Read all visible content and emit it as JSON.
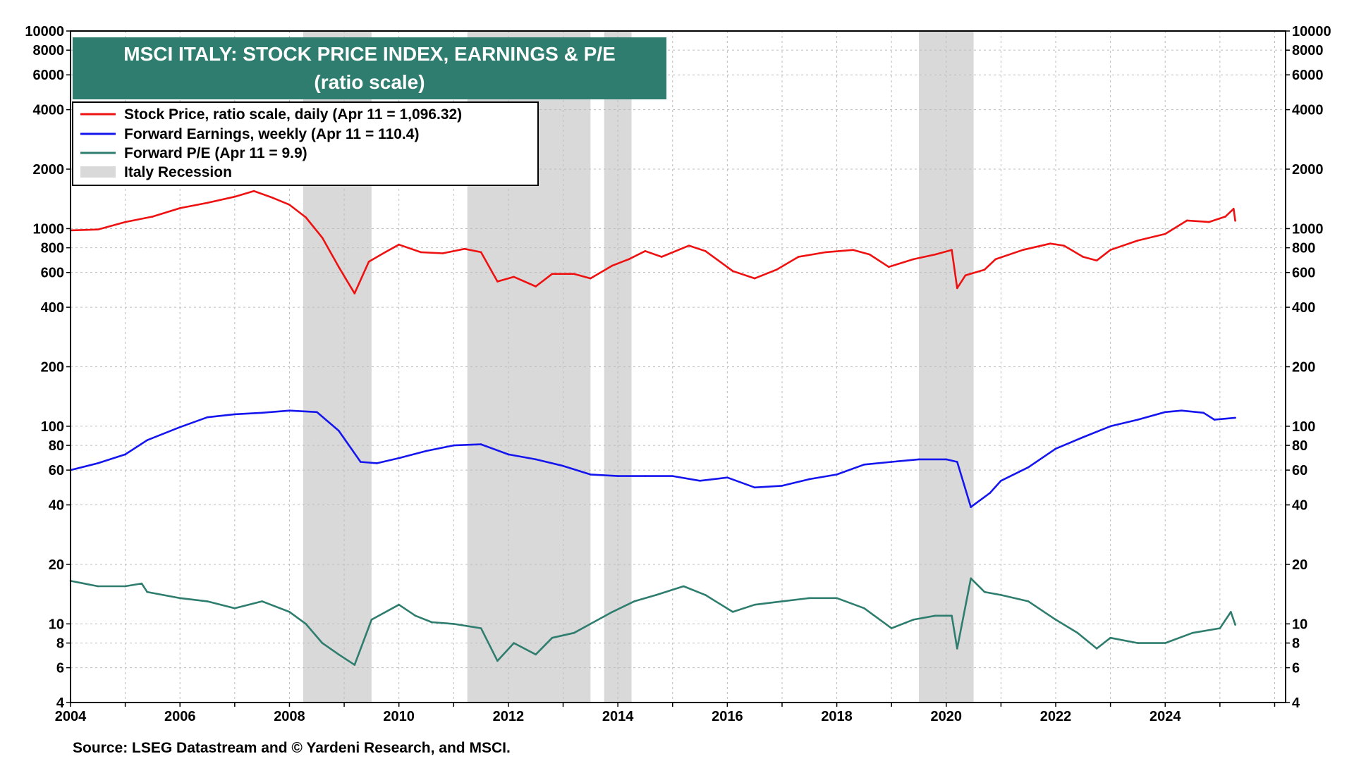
{
  "chart_data": {
    "type": "line",
    "title": "MSCI ITALY: STOCK PRICE INDEX, EARNINGS & P/E",
    "subtitle": "(ratio scale)",
    "source": "Source: LSEG Datastream and © Yardeni Research, and MSCI.",
    "y_scale": "log",
    "ylim": [
      4,
      10000
    ],
    "xlim": [
      2004.0,
      2026.2
    ],
    "x_ticks": [
      "2004",
      "2006",
      "2008",
      "2010",
      "2012",
      "2014",
      "2016",
      "2018",
      "2020",
      "2022",
      "2024"
    ],
    "y_ticks": [
      "4",
      "6",
      "8",
      "10",
      "20",
      "40",
      "60",
      "80",
      "100",
      "200",
      "400",
      "600",
      "800",
      "1000",
      "2000",
      "4000",
      "6000",
      "8000",
      "10000"
    ],
    "grid": true,
    "legend_position": "top-left",
    "legend": [
      {
        "label": "Stock Price, ratio scale, daily (Apr 11 = 1,096.32)",
        "color": "#ee1111",
        "kind": "line"
      },
      {
        "label": "Forward Earnings, weekly (Apr 11 = 110.4)",
        "color": "#1515ee",
        "kind": "line"
      },
      {
        "label": "Forward P/E (Apr 11 = 9.9)",
        "color": "#2e7d6e",
        "kind": "line"
      },
      {
        "label": "Italy Recession",
        "color": "#d9d9d9",
        "kind": "area"
      }
    ],
    "recessions": [
      [
        2008.25,
        2009.5
      ],
      [
        2011.25,
        2013.5
      ],
      [
        2013.75,
        2014.25
      ],
      [
        2019.5,
        2020.5
      ]
    ],
    "series": [
      {
        "name": "Stock Price, ratio scale, daily (Apr 11 = 1,096.32)",
        "color": "#ee1111",
        "x": [
          2004.0,
          2004.5,
          2005.0,
          2005.5,
          2006.0,
          2006.5,
          2007.0,
          2007.35,
          2007.7,
          2008.0,
          2008.3,
          2008.6,
          2008.9,
          2009.19,
          2009.45,
          2009.75,
          2010.0,
          2010.4,
          2010.8,
          2011.2,
          2011.5,
          2011.8,
          2012.1,
          2012.5,
          2012.8,
          2013.2,
          2013.5,
          2013.9,
          2014.2,
          2014.5,
          2014.8,
          2015.3,
          2015.6,
          2016.1,
          2016.5,
          2016.9,
          2017.3,
          2017.8,
          2018.3,
          2018.6,
          2018.95,
          2019.4,
          2019.8,
          2020.1,
          2020.2,
          2020.35,
          2020.7,
          2020.9,
          2021.4,
          2021.9,
          2022.15,
          2022.5,
          2022.75,
          2023.0,
          2023.5,
          2024.0,
          2024.4,
          2024.8,
          2025.1,
          2025.25,
          2025.28
        ],
        "values": [
          980,
          990,
          1080,
          1150,
          1270,
          1350,
          1450,
          1550,
          1430,
          1320,
          1140,
          900,
          640,
          470,
          680,
          760,
          830,
          760,
          750,
          790,
          760,
          540,
          570,
          510,
          590,
          590,
          560,
          650,
          700,
          770,
          720,
          820,
          770,
          610,
          560,
          620,
          720,
          760,
          780,
          740,
          640,
          700,
          740,
          780,
          500,
          580,
          620,
          700,
          780,
          840,
          820,
          720,
          690,
          780,
          870,
          940,
          1100,
          1080,
          1150,
          1260,
          1096
        ]
      },
      {
        "name": "Forward Earnings, weekly (Apr 11 = 110.4)",
        "color": "#1515ee",
        "x": [
          2004.0,
          2004.5,
          2005.0,
          2005.4,
          2006.0,
          2006.5,
          2007.0,
          2007.5,
          2008.0,
          2008.5,
          2008.9,
          2009.3,
          2009.6,
          2010.0,
          2010.5,
          2011.0,
          2011.5,
          2012.0,
          2012.5,
          2013.0,
          2013.5,
          2014.0,
          2014.5,
          2015.0,
          2015.5,
          2016.0,
          2016.5,
          2017.0,
          2017.5,
          2018.0,
          2018.5,
          2019.0,
          2019.5,
          2020.0,
          2020.2,
          2020.45,
          2020.8,
          2021.0,
          2021.5,
          2022.0,
          2022.5,
          2023.0,
          2023.5,
          2024.0,
          2024.3,
          2024.7,
          2024.9,
          2025.28
        ],
        "values": [
          60,
          65,
          72,
          85,
          99,
          111,
          115,
          117,
          120,
          118,
          95,
          66,
          65,
          69,
          75,
          80,
          81,
          72,
          68,
          63,
          57,
          56,
          56,
          56,
          53,
          55,
          49,
          50,
          54,
          57,
          64,
          66,
          68,
          68,
          66,
          39,
          46,
          53,
          62,
          77,
          88,
          100,
          108,
          118,
          120,
          117,
          108,
          110.4
        ]
      },
      {
        "name": "Forward P/E (Apr 11 = 9.9)",
        "color": "#2e7d6e",
        "x": [
          2004.0,
          2004.5,
          2005.0,
          2005.3,
          2005.4,
          2006.0,
          2006.5,
          2007.0,
          2007.5,
          2008.0,
          2008.3,
          2008.6,
          2008.9,
          2009.19,
          2009.5,
          2010.0,
          2010.3,
          2010.6,
          2011.0,
          2011.5,
          2011.8,
          2012.1,
          2012.5,
          2012.8,
          2013.2,
          2013.5,
          2013.9,
          2014.3,
          2014.7,
          2015.2,
          2015.6,
          2016.1,
          2016.5,
          2017.0,
          2017.5,
          2018.0,
          2018.5,
          2019.0,
          2019.4,
          2019.8,
          2020.1,
          2020.2,
          2020.45,
          2020.7,
          2021.0,
          2021.5,
          2022.0,
          2022.4,
          2022.75,
          2023.0,
          2023.5,
          2024.0,
          2024.5,
          2025.0,
          2025.2,
          2025.28
        ],
        "values": [
          16.5,
          15.5,
          15.5,
          16.0,
          14.5,
          13.5,
          13.0,
          12.0,
          13.0,
          11.5,
          10.0,
          8.0,
          7.0,
          6.2,
          10.5,
          12.5,
          11.0,
          10.2,
          10.0,
          9.5,
          6.5,
          8.0,
          7.0,
          8.5,
          9.0,
          10.0,
          11.5,
          13.0,
          14.0,
          15.5,
          14.0,
          11.5,
          12.5,
          13.0,
          13.5,
          13.5,
          12.0,
          9.5,
          10.5,
          11.0,
          11.0,
          7.5,
          17.0,
          14.5,
          14.0,
          13.0,
          10.5,
          9.0,
          7.5,
          8.5,
          8.0,
          8.0,
          9.0,
          9.5,
          11.5,
          9.9
        ]
      }
    ]
  }
}
